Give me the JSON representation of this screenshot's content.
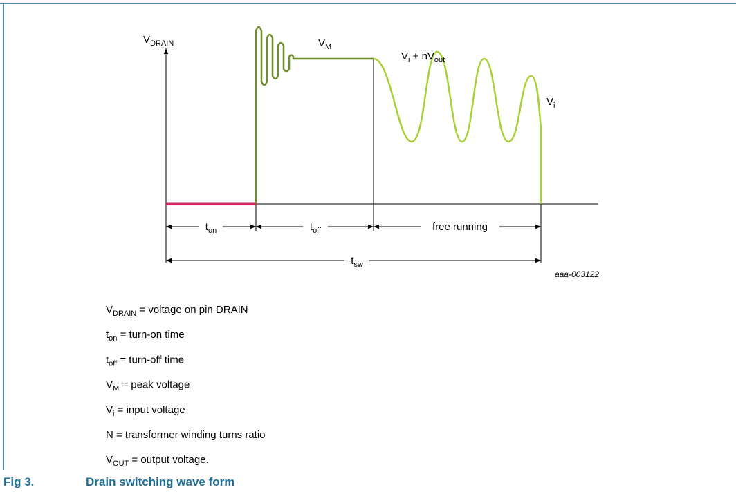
{
  "diagram": {
    "y_axis_label": [
      {
        "text": "V"
      },
      {
        "sub": "DRAIN"
      }
    ],
    "peak_label": [
      {
        "text": "V"
      },
      {
        "sub": "M"
      }
    ],
    "ringing_label": [
      {
        "text": "V"
      },
      {
        "sub": "i"
      },
      {
        "text": " + nV"
      },
      {
        "sub": "out"
      }
    ],
    "input_label": [
      {
        "text": "V"
      },
      {
        "sub": "i"
      }
    ],
    "interval_on": [
      {
        "text": "t"
      },
      {
        "sub": "on"
      }
    ],
    "interval_off": [
      {
        "text": "t"
      },
      {
        "sub": "off"
      }
    ],
    "interval_free": [
      {
        "text": "free running"
      }
    ],
    "interval_sw": [
      {
        "text": "t"
      },
      {
        "sub": "sw"
      }
    ],
    "code": "aaa-003122"
  },
  "legend": [
    [
      {
        "text": "V"
      },
      {
        "sub": "DRAIN"
      },
      {
        "text": " = voltage on pin DRAIN"
      }
    ],
    [
      {
        "text": "t"
      },
      {
        "sub": "on"
      },
      {
        "text": " = turn-on time"
      }
    ],
    [
      {
        "text": "t"
      },
      {
        "sub": "off"
      },
      {
        "text": " = turn-off time"
      }
    ],
    [
      {
        "text": "V"
      },
      {
        "sub": "M"
      },
      {
        "text": " = peak voltage"
      }
    ],
    [
      {
        "text": "V"
      },
      {
        "sub": "i"
      },
      {
        "text": " = input voltage"
      }
    ],
    [
      {
        "text": "N = transformer winding turns ratio"
      }
    ],
    [
      {
        "text": "V"
      },
      {
        "sub": "OUT"
      },
      {
        "text": " = output voltage."
      }
    ]
  ],
  "caption": {
    "number": "Fig 3.",
    "title": "Drain switching wave form"
  }
}
